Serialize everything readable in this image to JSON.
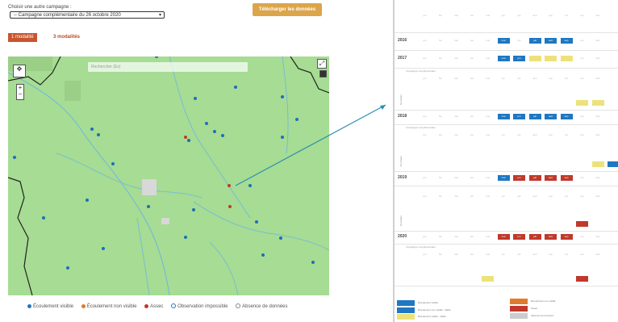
{
  "header": {
    "choose_label": "Choisir une autre campagne :",
    "campaign_value": "-- Campagne complémentaire du 26 octobre 2020",
    "download_label": "Télécharger les données"
  },
  "modality_tabs": [
    {
      "label": "1 modalité",
      "active": true
    },
    {
      "label": "3 modalités",
      "active": false
    }
  ],
  "map": {
    "search_placeholder": "Rechercher (Ex)",
    "background_color": "#a6dc93",
    "controls": [
      "pan-icon",
      "zoom-icon",
      "fullscreen-icon",
      "layers-icon"
    ]
  },
  "map_legend": [
    {
      "label": "Écoulement visible",
      "color": "#1e78c2",
      "kind": "dot"
    },
    {
      "label": "Écoulement non visible",
      "color": "#e07b2d",
      "kind": "dot"
    },
    {
      "label": "Assec",
      "color": "#c0392b",
      "kind": "dot"
    },
    {
      "label": "Observation impossible",
      "color": "#1e78c2",
      "kind": "ring"
    },
    {
      "label": "Absence de données",
      "color": "#999999",
      "kind": "ring"
    }
  ],
  "calendar": {
    "months": [
      "jan",
      "fév",
      "mar",
      "avr",
      "mai",
      "jun",
      "juil",
      "aoû",
      "sep",
      "oct",
      "nov",
      "déc"
    ],
    "years": [
      "2016",
      "2017",
      "2018",
      "2019",
      "2020"
    ],
    "row_labels": [
      "Normales",
      "Normales",
      "Normales"
    ],
    "sub_labels": [
      "Campagne complémentaire",
      "Campagne complémentaire"
    ],
    "cell_labels": {
      "mai": "mai",
      "jun": "jun",
      "jul": "juil",
      "aug": "aoû",
      "sep": "sep",
      "oct": "oct"
    },
    "colors": {
      "blue": "#1e78c2",
      "red": "#c0392b",
      "yellow": "#ede27a"
    }
  },
  "calendar_legend": [
    {
      "label": "Écoulement visible",
      "color": "#1e78c2"
    },
    {
      "label": "Écoulement non visible - faible",
      "color": "#1e78c2"
    },
    {
      "label": "Écoulement visible - faible",
      "color": "#ede27a"
    },
    {
      "label": "Écoulement non visible",
      "color": "#e07b2d"
    },
    {
      "label": "Assec",
      "color": "#c0392b"
    },
    {
      "label": "Absence de données",
      "color": "#cccccc"
    }
  ]
}
